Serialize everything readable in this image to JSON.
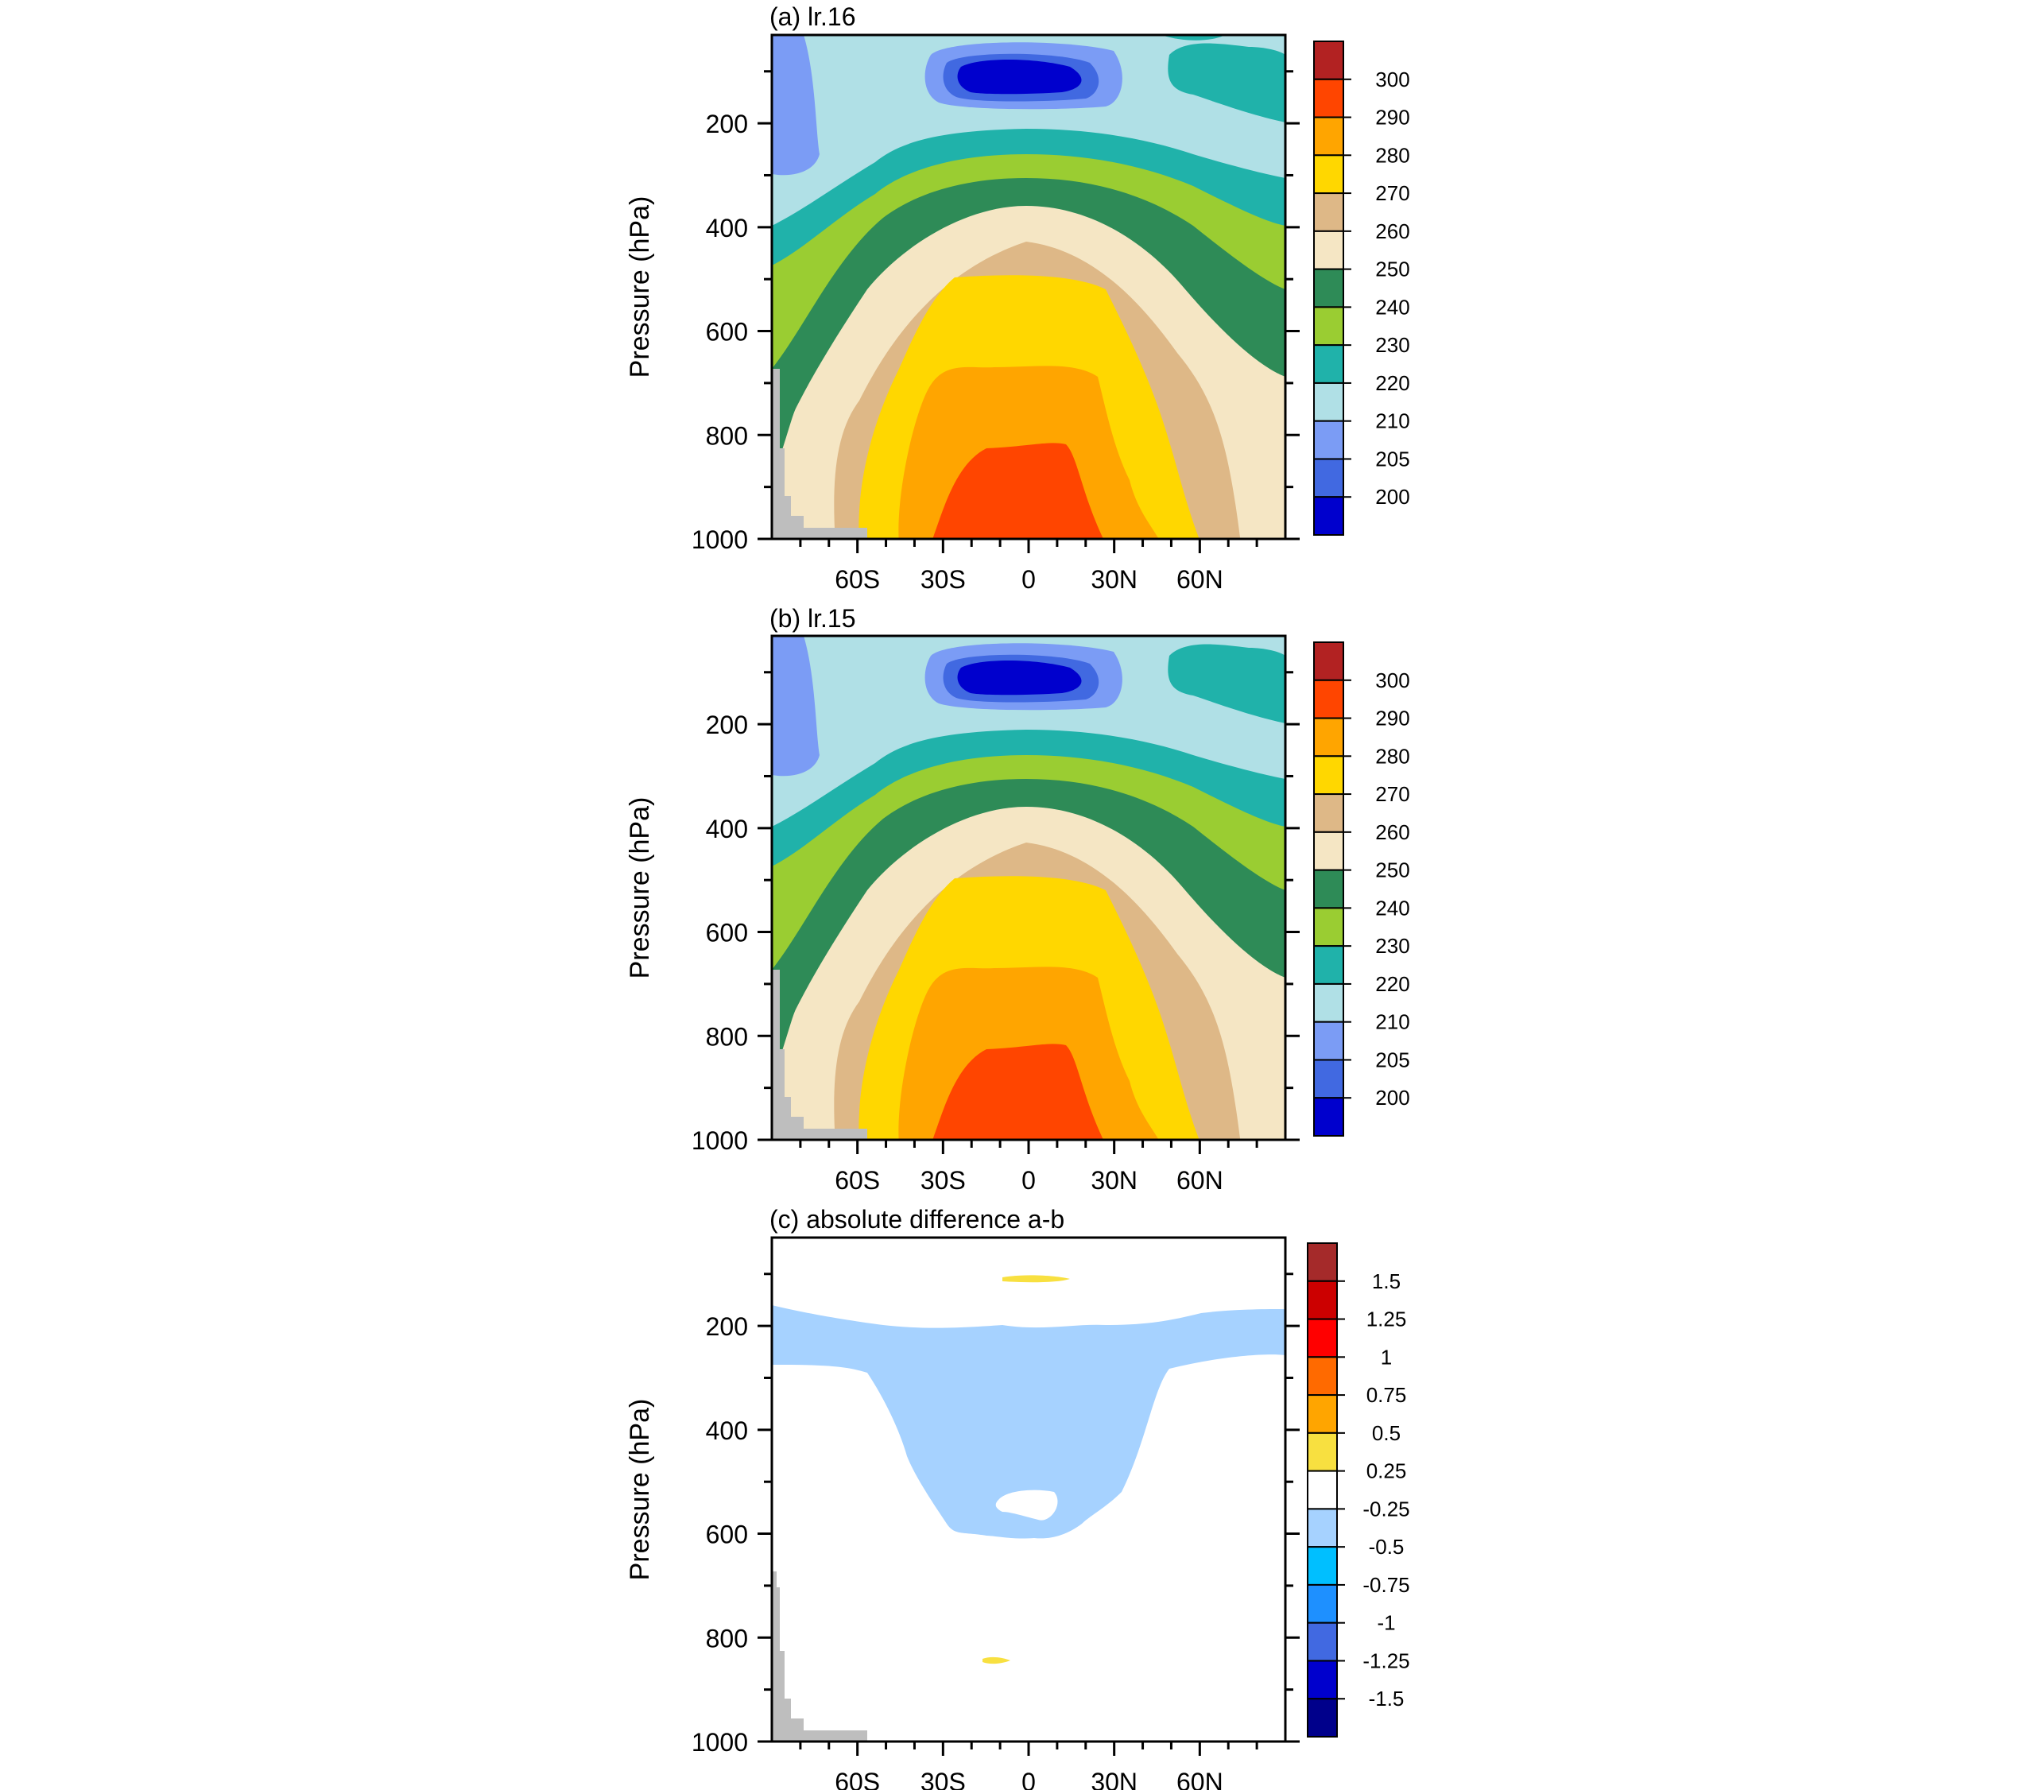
{
  "figure": {
    "panels": [
      {
        "id": "a",
        "title": "(a) lr.16",
        "ylabel": "Pressure (hPa)",
        "yticks": [
          "200",
          "400",
          "600",
          "800",
          "1000"
        ],
        "xticks": [
          "60S",
          "30S",
          "0",
          "30N",
          "60N"
        ],
        "colorbar": {
          "labels": [
            "300",
            "290",
            "280",
            "270",
            "260",
            "250",
            "240",
            "230",
            "220",
            "210",
            "205",
            "200"
          ],
          "colors": [
            "#B22222",
            "#FF4500",
            "#FFA500",
            "#FFD700",
            "#DEB887",
            "#F5E6C4",
            "#2E8B57",
            "#9ACD32",
            "#20B2AA",
            "#B0E0E6",
            "#7B9CF5",
            "#4169E1",
            "#0000CD"
          ]
        }
      },
      {
        "id": "b",
        "title": "(b) lr.15",
        "ylabel": "Pressure (hPa)",
        "yticks": [
          "200",
          "400",
          "600",
          "800",
          "1000"
        ],
        "xticks": [
          "60S",
          "30S",
          "0",
          "30N",
          "60N"
        ],
        "colorbar": {
          "labels": [
            "300",
            "290",
            "280",
            "270",
            "260",
            "250",
            "240",
            "230",
            "220",
            "210",
            "205",
            "200"
          ],
          "colors": [
            "#B22222",
            "#FF4500",
            "#FFA500",
            "#FFD700",
            "#DEB887",
            "#F5E6C4",
            "#2E8B57",
            "#9ACD32",
            "#20B2AA",
            "#B0E0E6",
            "#7B9CF5",
            "#4169E1",
            "#0000CD"
          ]
        }
      },
      {
        "id": "c",
        "title": "(c) absolute difference a-b",
        "ylabel": "Pressure (hPa)",
        "yticks": [
          "200",
          "400",
          "600",
          "800",
          "1000"
        ],
        "xticks": [
          "60S",
          "30S",
          "0",
          "30N",
          "60N"
        ],
        "colorbar": {
          "labels": [
            "1.5",
            "1.25",
            "1",
            "0.75",
            "0.5",
            "0.25",
            "-0.25",
            "-0.5",
            "-0.75",
            "-1",
            "-1.25",
            "-1.5"
          ],
          "colors": [
            "#A52A2A",
            "#CC0000",
            "#FF0000",
            "#FF6A00",
            "#FFA500",
            "#F8E040",
            "#FFFFFF",
            "#A6D2FF",
            "#00BFFF",
            "#1E90FF",
            "#4169E1",
            "#0000CD",
            "#00008B"
          ]
        }
      }
    ]
  },
  "chart_data": [
    {
      "type": "heatmap",
      "title": "(a) lr.16",
      "xlabel": "",
      "ylabel": "Pressure (hPa)",
      "x_axis": "latitude",
      "xlim": [
        -90,
        90
      ],
      "ylim": [
        1000,
        30
      ],
      "y_tick_values": [
        200,
        400,
        600,
        800,
        1000
      ],
      "x_tick_values": [
        -60,
        -30,
        0,
        30,
        60
      ],
      "contour_levels": [
        200,
        205,
        210,
        220,
        230,
        240,
        250,
        260,
        270,
        280,
        290,
        300
      ],
      "fill_colors": [
        "#0000CD",
        "#4169E1",
        "#7B9CF5",
        "#B0E0E6",
        "#20B2AA",
        "#9ACD32",
        "#2E8B57",
        "#F5E6C4",
        "#DEB887",
        "#FFD700",
        "#FFA500",
        "#FF4500",
        "#B22222"
      ],
      "missing_color": "#BEBEBE",
      "features": [
        {
          "description": "cold core",
          "lat": 0,
          "pressure": 80,
          "value_below": 200
        },
        {
          "description": "warm surface maximum",
          "lat": 5,
          "pressure": 950,
          "value_range": [
            290,
            300
          ]
        }
      ]
    },
    {
      "type": "heatmap",
      "title": "(b) lr.15",
      "xlabel": "",
      "ylabel": "Pressure (hPa)",
      "x_axis": "latitude",
      "xlim": [
        -90,
        90
      ],
      "ylim": [
        1000,
        30
      ],
      "y_tick_values": [
        200,
        400,
        600,
        800,
        1000
      ],
      "x_tick_values": [
        -60,
        -30,
        0,
        30,
        60
      ],
      "contour_levels": [
        200,
        205,
        210,
        220,
        230,
        240,
        250,
        260,
        270,
        280,
        290,
        300
      ],
      "fill_colors": [
        "#0000CD",
        "#4169E1",
        "#7B9CF5",
        "#B0E0E6",
        "#20B2AA",
        "#9ACD32",
        "#2E8B57",
        "#F5E6C4",
        "#DEB887",
        "#FFD700",
        "#FFA500",
        "#FF4500",
        "#B22222"
      ],
      "missing_color": "#BEBEBE"
    },
    {
      "type": "heatmap",
      "title": "(c) absolute difference a-b",
      "xlabel": "",
      "ylabel": "Pressure (hPa)",
      "x_axis": "latitude",
      "xlim": [
        -90,
        90
      ],
      "ylim": [
        1000,
        30
      ],
      "y_tick_values": [
        200,
        400,
        600,
        800,
        1000
      ],
      "x_tick_values": [
        -60,
        -30,
        0,
        30,
        60
      ],
      "contour_levels": [
        -1.5,
        -1.25,
        -1,
        -0.75,
        -0.5,
        -0.25,
        0.25,
        0.5,
        0.75,
        1,
        1.25,
        1.5
      ],
      "fill_colors": [
        "#00008B",
        "#0000CD",
        "#4169E1",
        "#1E90FF",
        "#00BFFF",
        "#A6D2FF",
        "#FFFFFF",
        "#F8E040",
        "#FFA500",
        "#FF6A00",
        "#FF0000",
        "#CC0000",
        "#A52A2A"
      ],
      "missing_color": "#BEBEBE",
      "features": [
        {
          "description": "negative band",
          "value_range": [
            -0.5,
            -0.25
          ],
          "pressure_range": [
            170,
            640
          ],
          "lat_range": [
            -90,
            90
          ]
        },
        {
          "description": "small positive patch",
          "lat": -10,
          "pressure": 850,
          "value_range": [
            0.25,
            0.5
          ]
        },
        {
          "description": "small positive patch",
          "lat": 5,
          "pressure": 100,
          "value_range": [
            0.25,
            0.5
          ]
        }
      ]
    }
  ]
}
